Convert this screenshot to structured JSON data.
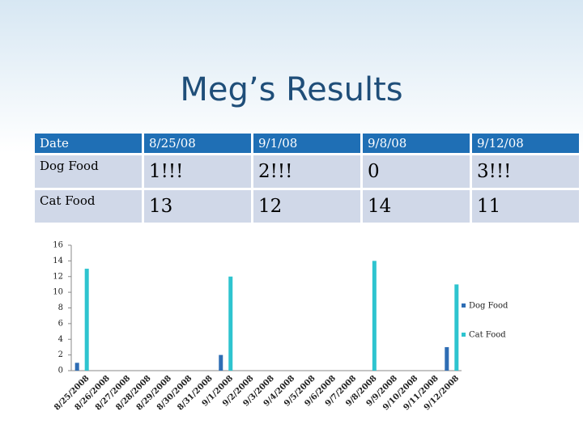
{
  "title": "Meg’s Results",
  "table": {
    "header": [
      "Date",
      "8/25/08",
      "9/1/08",
      "9/8/08",
      "9/12/08"
    ],
    "rows": [
      [
        "Dog Food",
        "1!!!",
        "2!!!",
        "0",
        "3!!!"
      ],
      [
        "Cat Food",
        "13",
        "12",
        "14",
        "11"
      ]
    ]
  },
  "chart_data": {
    "type": "bar",
    "categories": [
      "8/25/2008",
      "8/26/2008",
      "8/27/2008",
      "8/28/2008",
      "8/29/2008",
      "8/30/2008",
      "8/31/2008",
      "9/1/2008",
      "9/2/2008",
      "9/3/2008",
      "9/4/2008",
      "9/5/2008",
      "9/6/2008",
      "9/7/2008",
      "9/8/2008",
      "9/9/2008",
      "9/10/2008",
      "9/11/2008",
      "9/12/2008"
    ],
    "series": [
      {
        "name": "Dog Food",
        "color": "#2e6db4",
        "values": [
          1,
          null,
          null,
          null,
          null,
          null,
          null,
          2,
          null,
          null,
          null,
          null,
          null,
          null,
          0,
          null,
          null,
          null,
          3
        ]
      },
      {
        "name": "Cat Food",
        "color": "#2ec4cf",
        "values": [
          13,
          null,
          null,
          null,
          null,
          null,
          null,
          12,
          null,
          null,
          null,
          null,
          null,
          null,
          14,
          null,
          null,
          null,
          11
        ]
      }
    ],
    "ylim": [
      0,
      16
    ],
    "yticks": [
      0,
      2,
      4,
      6,
      8,
      10,
      12,
      14,
      16
    ],
    "legend": "right"
  }
}
